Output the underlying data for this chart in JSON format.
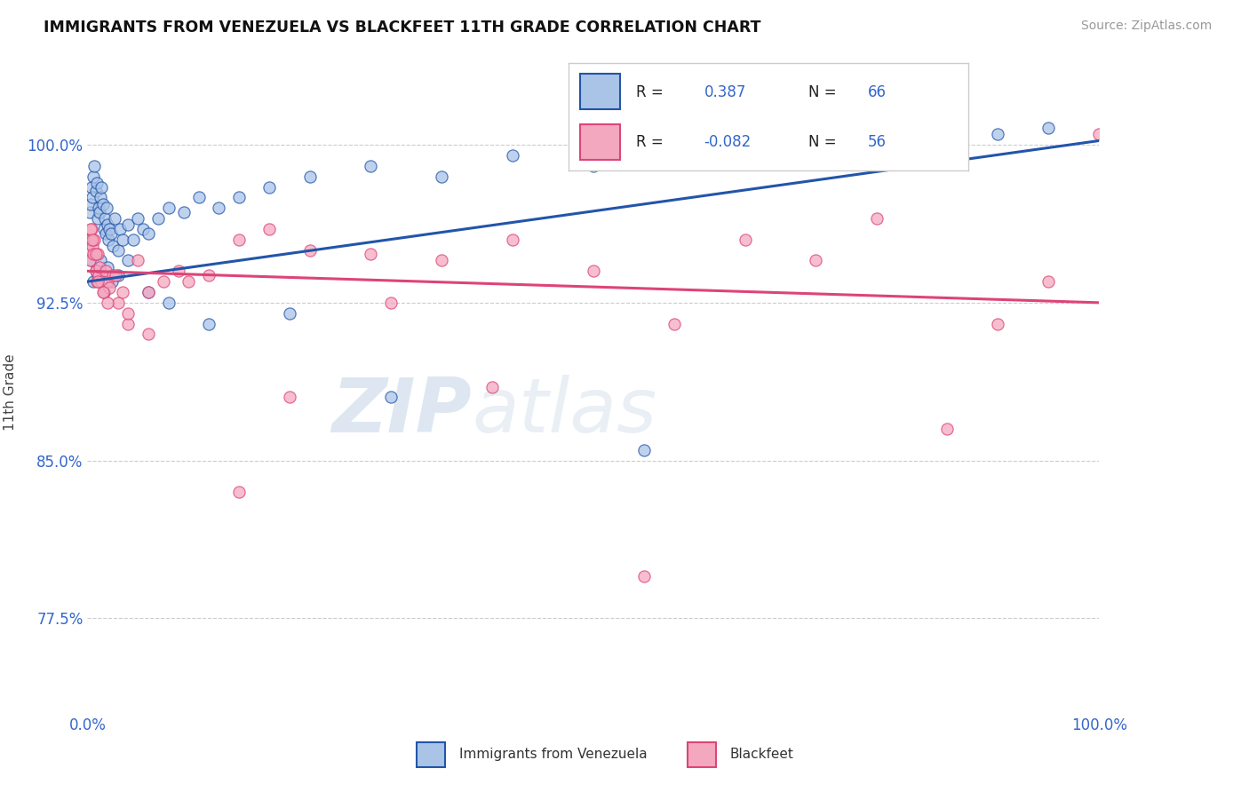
{
  "title": "IMMIGRANTS FROM VENEZUELA VS BLACKFEET 11TH GRADE CORRELATION CHART",
  "source": "Source: ZipAtlas.com",
  "ylabel": "11th Grade",
  "xlim": [
    0.0,
    100.0
  ],
  "ylim": [
    73.0,
    103.5
  ],
  "yticks": [
    77.5,
    85.0,
    92.5,
    100.0
  ],
  "yticklabels": [
    "77.5%",
    "85.0%",
    "92.5%",
    "100.0%"
  ],
  "series1_color": "#aac4e8",
  "series2_color": "#f4a8c0",
  "line1_color": "#2255aa",
  "line2_color": "#dd4477",
  "watermark_zip": "ZIP",
  "watermark_atlas": "atlas",
  "blue_x": [
    0.1,
    0.2,
    0.3,
    0.4,
    0.5,
    0.6,
    0.7,
    0.8,
    0.9,
    1.0,
    1.1,
    1.2,
    1.3,
    1.4,
    1.5,
    1.6,
    1.7,
    1.8,
    1.9,
    2.0,
    2.1,
    2.2,
    2.3,
    2.5,
    2.7,
    3.0,
    3.2,
    3.5,
    4.0,
    4.5,
    5.0,
    5.5,
    6.0,
    7.0,
    8.0,
    9.5,
    11.0,
    13.0,
    15.0,
    18.0,
    22.0,
    28.0,
    35.0,
    42.0,
    50.0,
    60.0,
    70.0,
    80.0,
    90.0,
    95.0,
    0.4,
    0.6,
    0.8,
    1.0,
    1.3,
    1.6,
    2.0,
    2.4,
    3.0,
    4.0,
    6.0,
    8.0,
    12.0,
    20.0,
    30.0,
    55.0
  ],
  "blue_y": [
    95.5,
    96.8,
    97.2,
    98.0,
    97.5,
    98.5,
    99.0,
    97.8,
    98.2,
    96.5,
    97.0,
    96.8,
    97.5,
    98.0,
    97.2,
    96.0,
    96.5,
    95.8,
    97.0,
    96.2,
    95.5,
    96.0,
    95.8,
    95.2,
    96.5,
    95.0,
    96.0,
    95.5,
    96.2,
    95.5,
    96.5,
    96.0,
    95.8,
    96.5,
    97.0,
    96.8,
    97.5,
    97.0,
    97.5,
    98.0,
    98.5,
    99.0,
    98.5,
    99.5,
    99.0,
    99.5,
    100.0,
    100.2,
    100.5,
    100.8,
    94.5,
    93.5,
    94.0,
    93.8,
    94.5,
    93.0,
    94.2,
    93.5,
    93.8,
    94.5,
    93.0,
    92.5,
    91.5,
    92.0,
    88.0,
    85.5
  ],
  "pink_x": [
    0.1,
    0.2,
    0.3,
    0.4,
    0.5,
    0.6,
    0.7,
    0.8,
    0.9,
    1.0,
    1.1,
    1.2,
    1.4,
    1.6,
    1.8,
    2.0,
    2.2,
    2.5,
    3.0,
    3.5,
    4.0,
    5.0,
    6.0,
    7.5,
    9.0,
    12.0,
    15.0,
    18.0,
    22.0,
    28.0,
    35.0,
    42.0,
    50.0,
    58.0,
    65.0,
    72.0,
    78.0,
    85.0,
    90.0,
    95.0,
    0.3,
    0.5,
    0.8,
    1.0,
    1.5,
    2.0,
    2.8,
    4.0,
    6.0,
    10.0,
    15.0,
    20.0,
    30.0,
    40.0,
    55.0,
    100.0
  ],
  "pink_y": [
    95.0,
    94.5,
    95.5,
    96.0,
    95.2,
    94.8,
    95.5,
    94.0,
    93.5,
    94.8,
    93.8,
    94.2,
    93.5,
    93.0,
    94.0,
    93.5,
    93.2,
    93.8,
    92.5,
    93.0,
    91.5,
    94.5,
    93.0,
    93.5,
    94.0,
    93.8,
    95.5,
    96.0,
    95.0,
    94.8,
    94.5,
    95.5,
    94.0,
    91.5,
    95.5,
    94.5,
    96.5,
    86.5,
    91.5,
    93.5,
    96.0,
    95.5,
    94.8,
    93.5,
    93.0,
    92.5,
    93.8,
    92.0,
    91.0,
    93.5,
    83.5,
    88.0,
    92.5,
    88.5,
    79.5,
    100.5
  ],
  "blue_line_x0": 0.0,
  "blue_line_y0": 93.5,
  "blue_line_x1": 100.0,
  "blue_line_y1": 100.2,
  "pink_line_x0": 0.0,
  "pink_line_y0": 94.0,
  "pink_line_x1": 100.0,
  "pink_line_y1": 92.5
}
